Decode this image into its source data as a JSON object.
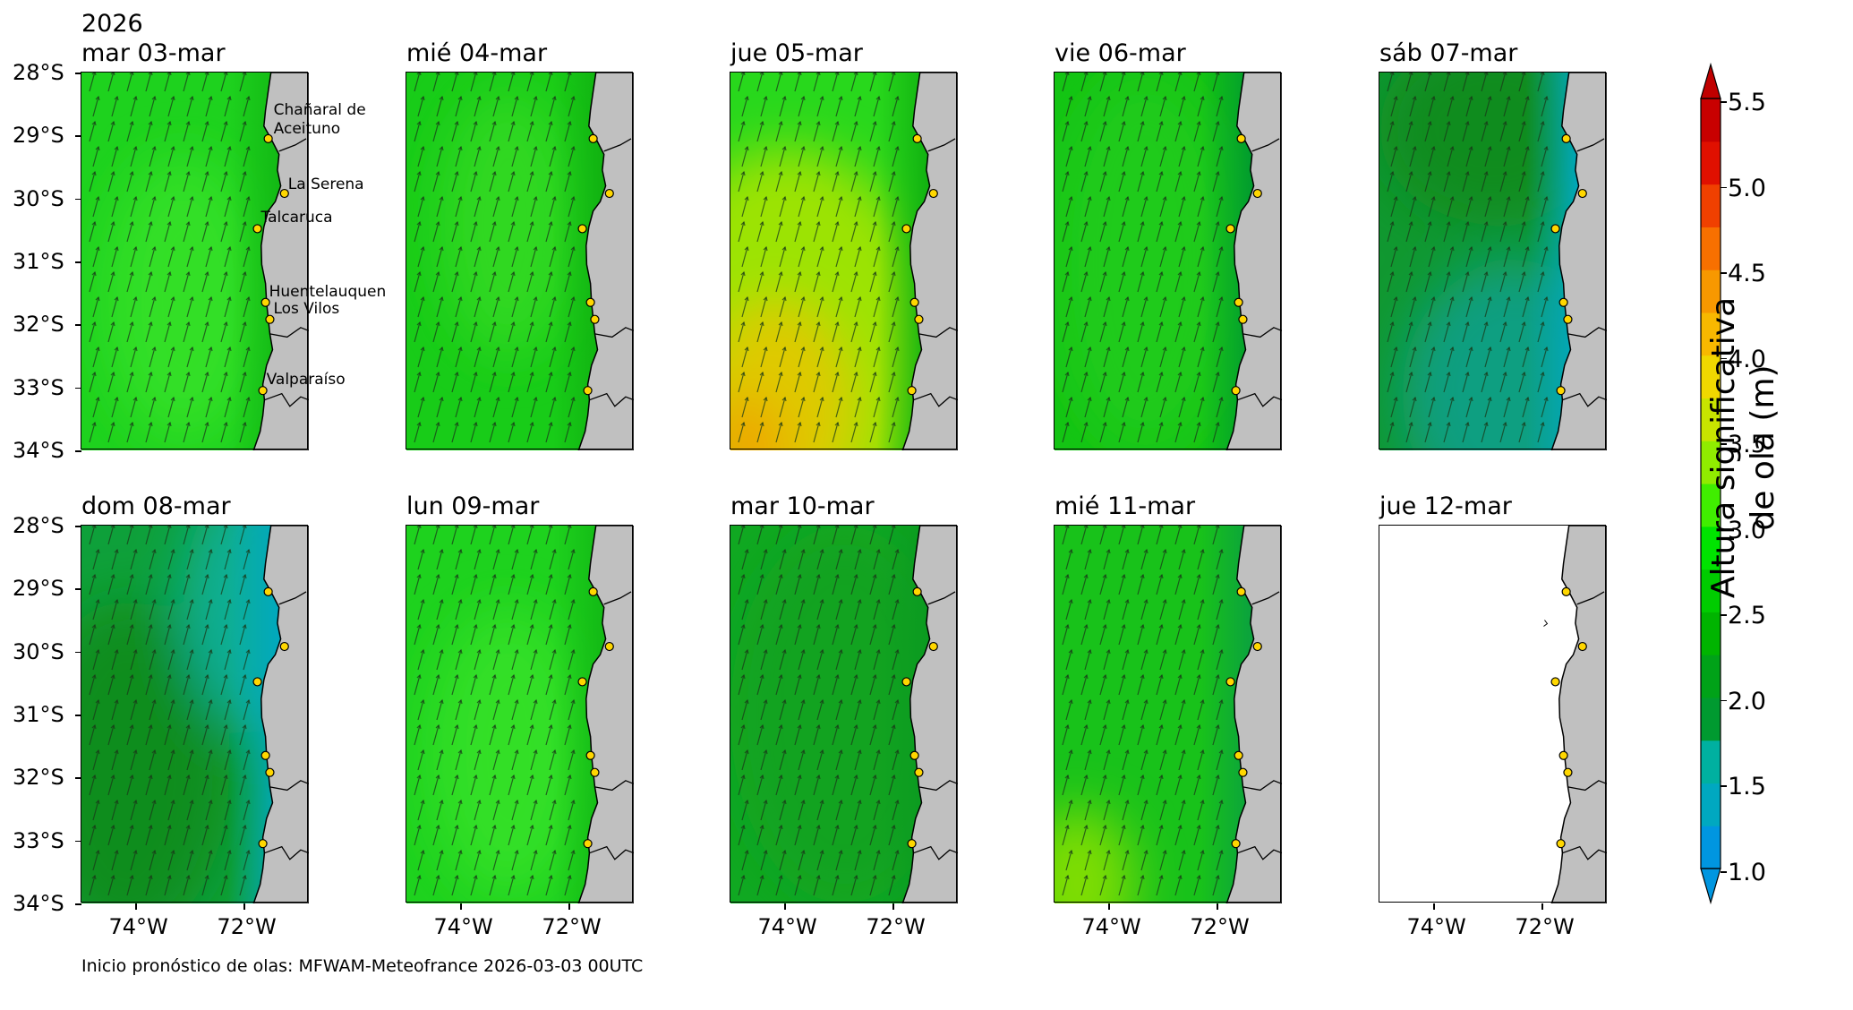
{
  "year": "2026",
  "panels": [
    {
      "title": "mar 03-mar",
      "scheme": "A",
      "cities_labeled": true
    },
    {
      "title": "mié 04-mar",
      "scheme": "A2"
    },
    {
      "title": "jue 05-mar",
      "scheme": "Y"
    },
    {
      "title": "vie 06-mar",
      "scheme": "G"
    },
    {
      "title": "sáb 07-mar",
      "scheme": "B"
    },
    {
      "title": "dom 08-mar",
      "scheme": "C"
    },
    {
      "title": "lun 09-mar",
      "scheme": "A"
    },
    {
      "title": "mar 10-mar",
      "scheme": "D"
    },
    {
      "title": "mié 11-mar",
      "scheme": "E"
    },
    {
      "title": "jue 12-mar",
      "scheme": "W"
    }
  ],
  "y_ticks": [
    "28°S",
    "29°S",
    "30°S",
    "31°S",
    "32°S",
    "33°S",
    "34°S"
  ],
  "x_ticks": [
    "74°W",
    "72°W"
  ],
  "cities": [
    "Chañaral de Aceituno",
    "La Serena",
    "Talcaruca",
    "Huentelauquen",
    "Los Vilos",
    "Valparaíso"
  ],
  "footer": "Inicio pronóstico de olas: MFWAM-Meteofrance 2026-03-03 00UTC",
  "colorbar": {
    "title_line1": "Altura significativa",
    "title_line2": "de ola (m)",
    "labels": [
      "5.5",
      "5.0",
      "4.5",
      "4.0",
      "3.5",
      "3.0",
      "2.5",
      "2.0",
      "1.5",
      "1.0"
    ],
    "values": [
      5.5,
      5.0,
      4.5,
      4.0,
      3.5,
      3.0,
      2.5,
      2.0,
      1.5,
      1.0
    ],
    "min": 1.0,
    "max": 5.5,
    "colors": [
      "#0096e0",
      "#00a8c0",
      "#00b0a0",
      "#009a30",
      "#00a218",
      "#00b400",
      "#00cc00",
      "#00e400",
      "#40ee00",
      "#90ec00",
      "#c8e400",
      "#f0d800",
      "#f8b800",
      "#f89800",
      "#f87000",
      "#f04000",
      "#e01000",
      "#c80000"
    ]
  },
  "land_color": "#c0c0c0"
}
